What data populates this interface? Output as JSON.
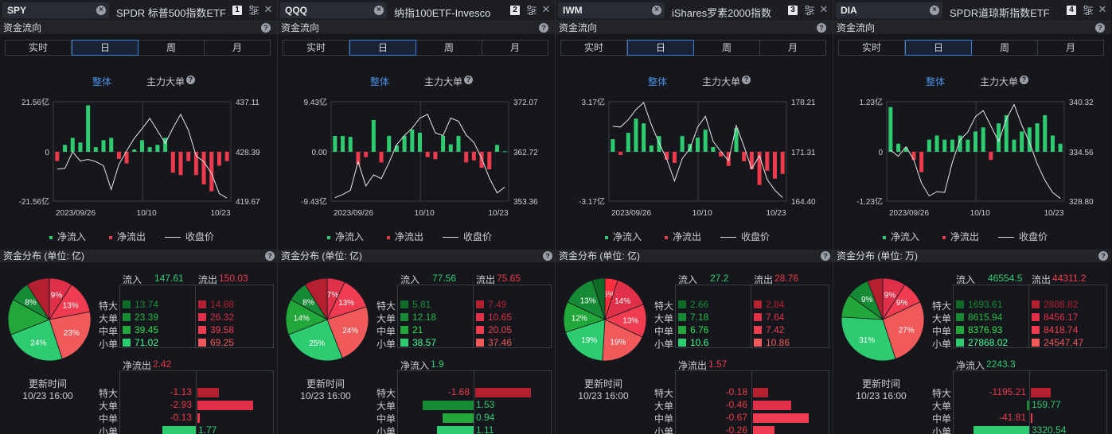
{
  "colors": {
    "inflow": "#2ecc71",
    "outflow": "#ee3a4a",
    "price": "#e6e8ec",
    "accent": "#4a90e2"
  },
  "common": {
    "flow_title": "资金流向",
    "periods": [
      "实时",
      "日",
      "周",
      "月"
    ],
    "active_period": 1,
    "subtab_all": "整体",
    "subtab_main": "主力大单",
    "legend_in": "净流入",
    "legend_out": "净流出",
    "legend_price": "收盘价",
    "in_label": "流入",
    "out_label": "流出",
    "row_labels": [
      "特大",
      "大单",
      "中单",
      "小单"
    ],
    "update_label": "更新时间",
    "update_time": "10/23 16:00",
    "help": "?",
    "clear": "×",
    "close": "✕"
  },
  "panels": [
    {
      "ticker": "SPY",
      "name": "SPDR 标普500指数ETF",
      "slot": "1",
      "dist_title": "资金分布 (单位: 亿)",
      "chart_data": {
        "type": "bar",
        "x_ticks": [
          "2023/09/26",
          "10/10",
          "10/23"
        ],
        "y_left_ticks": [
          "21.56亿",
          "0",
          "-21.56亿"
        ],
        "y_right_ticks": [
          "437.11",
          "428.39",
          "419.67"
        ],
        "y_left_range": [
          -21.56,
          21.56
        ],
        "y_right_range": [
          419.67,
          437.11
        ],
        "net_flow": [
          -4,
          3,
          6,
          4,
          20,
          2,
          5,
          6,
          -3,
          -5,
          1,
          5,
          2,
          3,
          6,
          -9,
          -10,
          -4,
          -10,
          -14,
          -17,
          -6,
          -4
        ],
        "close": [
          425.3,
          425.4,
          428.3,
          426.7,
          427.0,
          426.6,
          425.9,
          421.7,
          426.1,
          428.5,
          430.7,
          432.4,
          434.2,
          432.0,
          429.8,
          432.5,
          434.9,
          432.1,
          427.6,
          426.6,
          424.5,
          421.0,
          420.2
        ]
      },
      "in_total": "147.61",
      "out_total": "150.03",
      "in_vals": [
        "13.74",
        "23.39",
        "39.45",
        "71.02"
      ],
      "out_vals": [
        "14.88",
        "26.32",
        "39.58",
        "69.25"
      ],
      "pie": [
        {
          "pct": 9,
          "label": "9%",
          "color": "#e0304a"
        },
        {
          "pct": 13,
          "label": "13%",
          "color": "#f03c50"
        },
        {
          "pct": 23,
          "label": "23%",
          "color": "#f05a5a"
        },
        {
          "pct": 24,
          "label": "24%",
          "color": "#2ecc71"
        },
        {
          "pct": 14,
          "label": "",
          "color": "#22a83a"
        },
        {
          "pct": 8,
          "label": "8%",
          "color": "#178a35"
        },
        {
          "pct": 9,
          "label": "",
          "color": "#b42030"
        }
      ],
      "net_label": "净流出",
      "net_total": "2.42",
      "net_positive": false,
      "net_vals": [
        "-1.13",
        "-2.93",
        "-0.13",
        "1.77"
      ],
      "net_nums": [
        -1.13,
        -2.93,
        -0.13,
        1.77
      ]
    },
    {
      "ticker": "QQQ",
      "name": "纳指100ETF-Invesco",
      "slot": "2",
      "dist_title": "资金分布 (单位: 亿)",
      "chart_data": {
        "type": "bar",
        "x_ticks": [
          "2023/09/26",
          "10/10",
          "10/23"
        ],
        "y_left_ticks": [
          "9.43亿",
          "0.00",
          "-9.43亿"
        ],
        "y_right_ticks": [
          "372.07",
          "362.72",
          "353.36"
        ],
        "y_left_range": [
          -9.43,
          9.43
        ],
        "y_right_range": [
          353.36,
          372.07
        ],
        "net_flow": [
          3,
          3,
          2.8,
          -2.4,
          -1,
          6,
          -2,
          3,
          1.2,
          3,
          4.2,
          3.6,
          -1,
          -1.4,
          3,
          1.4,
          3,
          -2,
          -1.6,
          -3,
          -3.3,
          1.3,
          0.1
        ],
        "close": [
          354.0,
          354.6,
          355.4,
          360.8,
          356.2,
          358.3,
          357.6,
          360.6,
          364.0,
          365.7,
          367.1,
          369.0,
          369.7,
          366.2,
          365.7,
          369.0,
          368.4,
          365.8,
          364.4,
          361.4,
          357.7,
          354.9,
          356.0
        ]
      },
      "in_total": "77.56",
      "out_total": "75.65",
      "in_vals": [
        "5.81",
        "12.18",
        "21",
        "38.57"
      ],
      "out_vals": [
        "7.49",
        "10.65",
        "20.05",
        "37.46"
      ],
      "pie": [
        {
          "pct": 7,
          "label": "7%",
          "color": "#e0304a"
        },
        {
          "pct": 13,
          "label": "13%",
          "color": "#f03c50"
        },
        {
          "pct": 24,
          "label": "24%",
          "color": "#f05a5a"
        },
        {
          "pct": 25,
          "label": "25%",
          "color": "#2ecc71"
        },
        {
          "pct": 14,
          "label": "14%",
          "color": "#22a83a"
        },
        {
          "pct": 8,
          "label": "8%",
          "color": "#178a35"
        },
        {
          "pct": 9,
          "label": "",
          "color": "#b42030"
        }
      ],
      "net_label": "净流入",
      "net_total": "1.9",
      "net_positive": true,
      "net_vals": [
        "-1.68",
        "1.53",
        "0.94",
        "1.11"
      ],
      "net_nums": [
        -1.68,
        1.53,
        0.94,
        1.11
      ]
    },
    {
      "ticker": "IWM",
      "name": "iShares罗素2000指数",
      "slot": "3",
      "dist_title": "资金分布 (单位: 亿)",
      "chart_data": {
        "type": "bar",
        "x_ticks": [
          "2023/09/26",
          "10/10",
          "10/23"
        ],
        "y_left_ticks": [
          "3.17亿",
          "",
          "-3.17亿"
        ],
        "y_right_ticks": [
          "178.21",
          "171.31",
          "164.40"
        ],
        "y_left_range": [
          -3.17,
          3.17
        ],
        "y_right_range": [
          164.4,
          178.21
        ],
        "net_flow": [
          0.8,
          -0.2,
          1.2,
          2.1,
          1.8,
          0.4,
          1.0,
          -0.5,
          -0.7,
          1.0,
          0.5,
          0.9,
          1.4,
          0.3,
          -0.3,
          -0.9,
          1.5,
          -0.6,
          -1.1,
          -2.1,
          -1.2,
          -1.7,
          -1.4
        ],
        "close": [
          174.8,
          174.7,
          175.7,
          177.1,
          178.1,
          175.0,
          172.5,
          170.2,
          167.2,
          170.3,
          171.7,
          174.7,
          176.2,
          172.7,
          171.3,
          170.0,
          174.9,
          172.0,
          168.9,
          170.7,
          167.4,
          165.9,
          164.9
        ]
      },
      "in_total": "27.2",
      "out_total": "28.76",
      "in_vals": [
        "2.66",
        "7.18",
        "6.76",
        "10.6"
      ],
      "out_vals": [
        "2.84",
        "7.64",
        "7.42",
        "10.86"
      ],
      "pie": [
        {
          "pct": 5,
          "label": "5%",
          "color": "#ff2e3e"
        },
        {
          "pct": 14,
          "label": "14%",
          "color": "#e0304a"
        },
        {
          "pct": 13,
          "label": "13%",
          "color": "#f03c50"
        },
        {
          "pct": 19,
          "label": "19%",
          "color": "#f05a5a"
        },
        {
          "pct": 19,
          "label": "19%",
          "color": "#2ecc71"
        },
        {
          "pct": 12,
          "label": "12%",
          "color": "#22a83a"
        },
        {
          "pct": 13,
          "label": "13%",
          "color": "#178a35"
        },
        {
          "pct": 5,
          "label": "",
          "color": "#0f6b28"
        }
      ],
      "net_label": "净流出",
      "net_total": "1.57",
      "net_positive": false,
      "net_vals": [
        "-0.18",
        "-0.46",
        "-0.67",
        "-0.26"
      ],
      "net_nums": [
        -0.18,
        -0.46,
        -0.67,
        -0.26
      ]
    },
    {
      "ticker": "DIA",
      "name": "SPDR道琼斯指数ETF",
      "slot": "4",
      "dist_title": "资金分布 (单位: 万)",
      "chart_data": {
        "type": "bar",
        "x_ticks": [
          "2023/09/26",
          "10/10",
          "10/23"
        ],
        "y_left_ticks": [
          "1.23亿",
          "0",
          "-1.23亿"
        ],
        "y_right_ticks": [
          "340.32",
          "334.56",
          "328.80"
        ],
        "y_left_range": [
          -1.23,
          1.23
        ],
        "y_right_range": [
          328.8,
          340.32
        ],
        "net_flow": [
          1.1,
          0.2,
          0.1,
          -0.2,
          -0.5,
          0.3,
          0.4,
          0.3,
          0.3,
          0.4,
          0.3,
          0.5,
          0.6,
          -0.2,
          0.7,
          0.9,
          0.3,
          0.5,
          0.6,
          0.7,
          0.9,
          0.4,
          0.2
        ],
        "close": [
          334.7,
          334.0,
          335.1,
          333.6,
          330.9,
          329.4,
          329.9,
          329.8,
          333.3,
          335.9,
          336.8,
          338.6,
          339.3,
          337.5,
          335.7,
          338.3,
          340.0,
          337.6,
          335.6,
          333.1,
          331.2,
          329.8,
          329.1
        ]
      },
      "in_total": "46554.5",
      "out_total": "44311.2",
      "in_vals": [
        "1693.61",
        "8615.94",
        "8376.93",
        "27868.02"
      ],
      "out_vals": [
        "2888.82",
        "8456.17",
        "8418.74",
        "24547.47"
      ],
      "pie": [
        {
          "pct": 9,
          "label": "9%",
          "color": "#e0304a"
        },
        {
          "pct": 9,
          "label": "9%",
          "color": "#f03c50"
        },
        {
          "pct": 27,
          "label": "27%",
          "color": "#f05a5a"
        },
        {
          "pct": 31,
          "label": "31%",
          "color": "#2ecc71"
        },
        {
          "pct": 9,
          "label": "",
          "color": "#22a83a"
        },
        {
          "pct": 9,
          "label": "9%",
          "color": "#178a35"
        },
        {
          "pct": 6,
          "label": "",
          "color": "#b42030"
        }
      ],
      "net_label": "净流入",
      "net_total": "2243.3",
      "net_positive": true,
      "net_vals": [
        "-1195.21",
        "159.77",
        "-41.81",
        "3320.54"
      ],
      "net_nums": [
        -1195.21,
        159.77,
        -41.81,
        3320.54
      ]
    }
  ]
}
